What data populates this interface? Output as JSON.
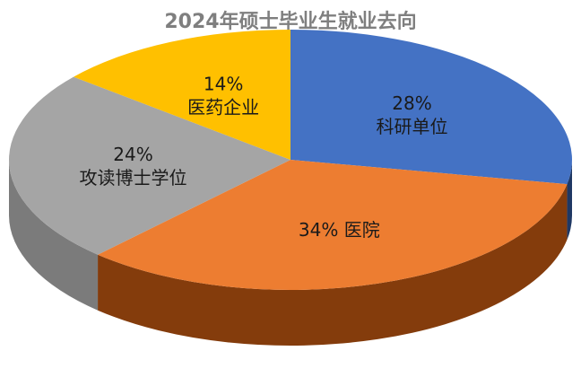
{
  "chart_data": {
    "type": "pie",
    "title": "2024年硕士毕业生就业去向",
    "slices": [
      {
        "label": "科研单位",
        "value": 28,
        "value_text": "28%",
        "color": "#4472C4",
        "side_color": "#1F3864"
      },
      {
        "label": "医院",
        "value": 34,
        "value_text": "34%",
        "color": "#ED7D31",
        "side_color": "#843C0C"
      },
      {
        "label": "攻读博士学位",
        "value": 24,
        "value_text": "24%",
        "color": "#A5A5A5",
        "side_color": "#7B7B7B"
      },
      {
        "label": "医药企业",
        "value": 14,
        "value_text": "14%",
        "color": "#FFC000",
        "side_color": "#BF9000"
      }
    ]
  }
}
